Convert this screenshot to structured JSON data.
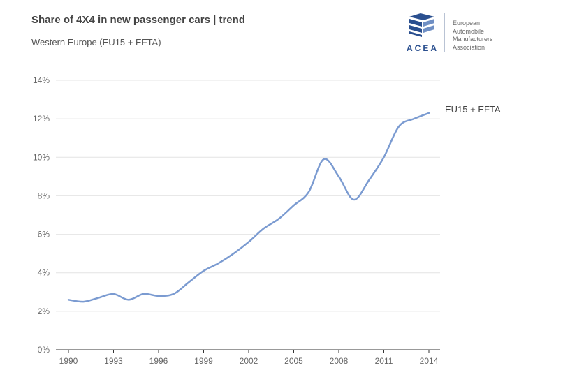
{
  "header": {
    "title": "Share of 4X4 in new passenger cars | trend",
    "subtitle": "Western Europe (EU15 + EFTA)"
  },
  "logo": {
    "acronym": "ACEA",
    "words": [
      "European",
      "Automobile",
      "Manufacturers",
      "Association"
    ]
  },
  "colors": {
    "series": "#7b9bd1",
    "grid": "#e4e4e4",
    "axis": "#333333",
    "tick_text": "#666666",
    "brand": "#2a4f8f"
  },
  "chart_data": {
    "type": "line",
    "title": "Share of 4X4 in new passenger cars | trend",
    "subtitle": "Western Europe (EU15 + EFTA)",
    "xlabel": "",
    "ylabel": "",
    "x": [
      1990,
      1991,
      1992,
      1993,
      1994,
      1995,
      1996,
      1997,
      1998,
      1999,
      2000,
      2001,
      2002,
      2003,
      2004,
      2005,
      2006,
      2007,
      2008,
      2009,
      2010,
      2011,
      2012,
      2013,
      2014
    ],
    "series": [
      {
        "name": "EU15 + EFTA",
        "values": [
          2.6,
          2.5,
          2.7,
          2.9,
          2.6,
          2.9,
          2.8,
          2.9,
          3.5,
          4.1,
          4.5,
          5.0,
          5.6,
          6.3,
          6.8,
          7.5,
          8.2,
          9.9,
          9.0,
          7.8,
          8.8,
          10.0,
          11.6,
          12.0,
          12.3
        ]
      }
    ],
    "xlim": [
      1990,
      2014
    ],
    "ylim": [
      0,
      14
    ],
    "x_ticks": [
      "1990",
      "1993",
      "1996",
      "1999",
      "2002",
      "2005",
      "2008",
      "2011",
      "2014"
    ],
    "y_ticks": [
      "0%",
      "2%",
      "4%",
      "6%",
      "8%",
      "10%",
      "12%",
      "14%"
    ],
    "y_tick_values": [
      0,
      2,
      4,
      6,
      8,
      10,
      12,
      14
    ],
    "x_tick_values": [
      1990,
      1993,
      1996,
      1999,
      2002,
      2005,
      2008,
      2011,
      2014
    ],
    "grid": "horizontal",
    "legend": "inline label at end of line"
  }
}
